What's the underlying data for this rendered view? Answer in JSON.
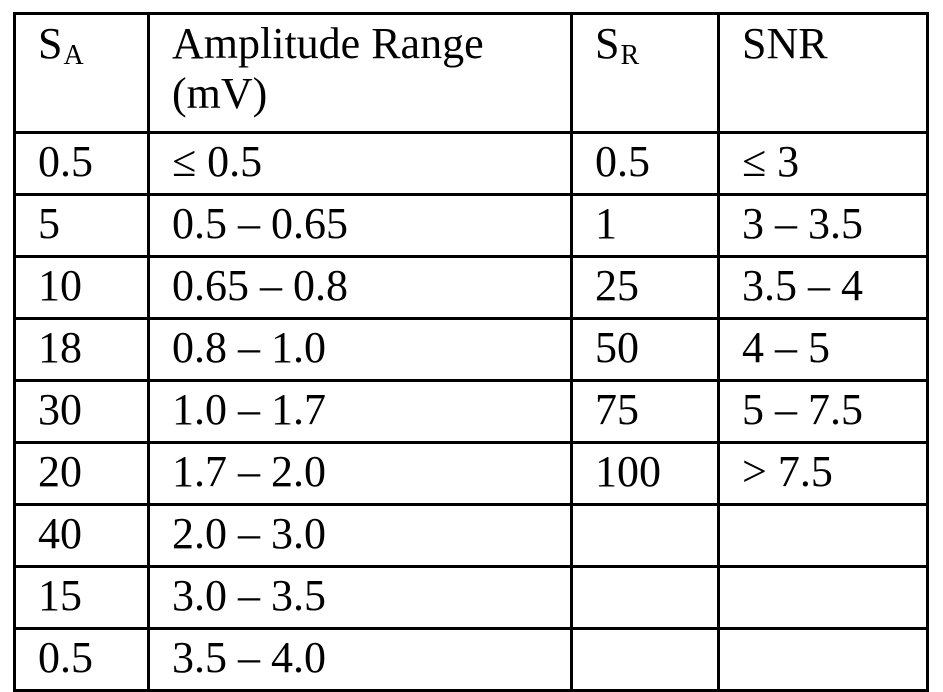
{
  "table": {
    "headers": {
      "sa": {
        "base": "S",
        "sub": "A"
      },
      "amplitude_range": "Amplitude Range (mV)",
      "sr": {
        "base": "S",
        "sub": "R"
      },
      "snr": "SNR"
    },
    "rows": [
      {
        "sa": "0.5",
        "amplitude_range": "≤ 0.5",
        "sr": "0.5",
        "snr": "≤ 3"
      },
      {
        "sa": "5",
        "amplitude_range": "0.5 – 0.65",
        "sr": "1",
        "snr": "3 – 3.5"
      },
      {
        "sa": "10",
        "amplitude_range": "0.65 – 0.8",
        "sr": "25",
        "snr": "3.5 – 4"
      },
      {
        "sa": "18",
        "amplitude_range": "0.8 – 1.0",
        "sr": "50",
        "snr": "4 – 5"
      },
      {
        "sa": "30",
        "amplitude_range": "1.0 – 1.7",
        "sr": "75",
        "snr": "5 – 7.5"
      },
      {
        "sa": "20",
        "amplitude_range": "1.7 – 2.0",
        "sr": "100",
        "snr": "> 7.5"
      },
      {
        "sa": "40",
        "amplitude_range": "2.0 – 3.0",
        "sr": "",
        "snr": ""
      },
      {
        "sa": "15",
        "amplitude_range": "3.0 – 3.5",
        "sr": "",
        "snr": ""
      },
      {
        "sa": "0.5",
        "amplitude_range": "3.5 – 4.0",
        "sr": "",
        "snr": ""
      }
    ]
  }
}
